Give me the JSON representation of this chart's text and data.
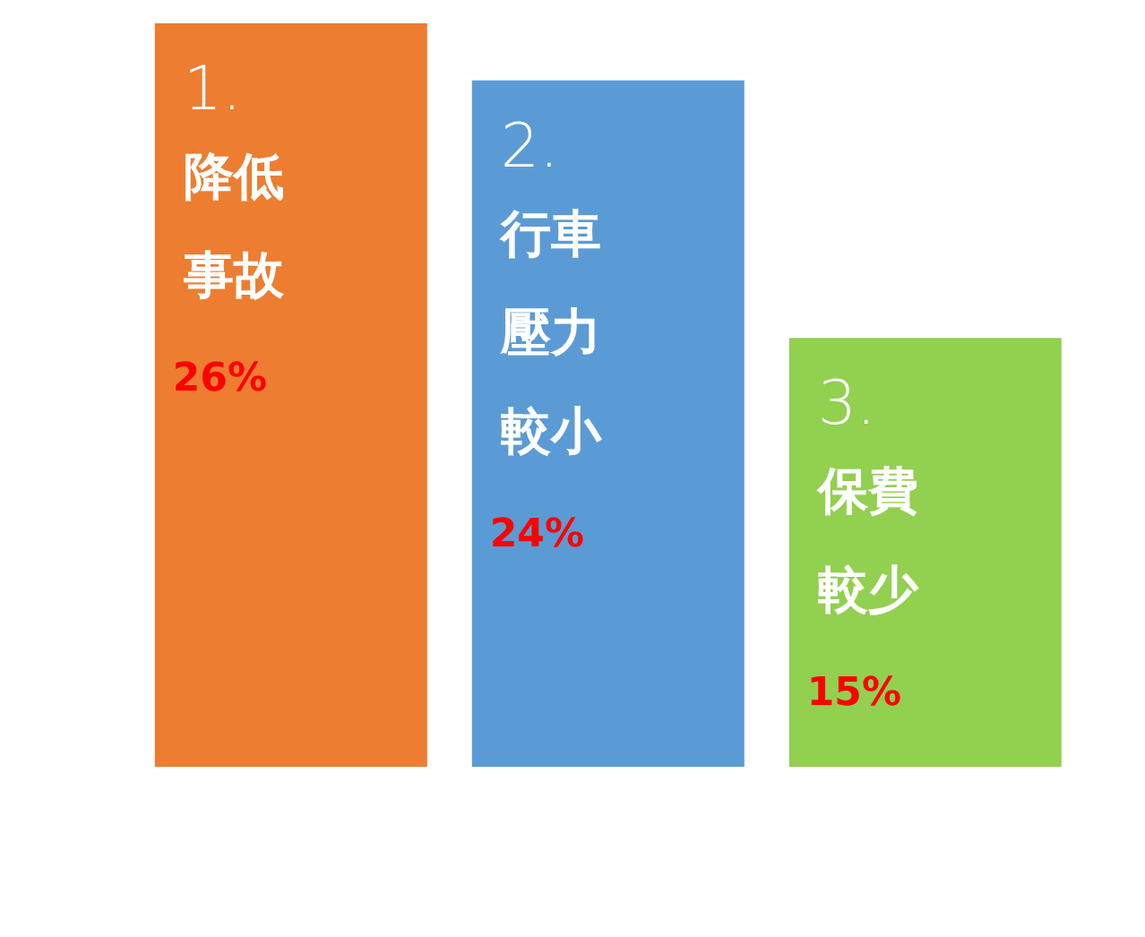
{
  "chart_data": {
    "type": "bar",
    "categories": [
      "1. 降低事故",
      "2. 行車壓力較小",
      "3. 保費較少"
    ],
    "values": [
      26,
      24,
      15
    ],
    "colors": [
      "#ed7d31",
      "#5b9bd5",
      "#92d050"
    ],
    "value_labels": [
      "26%",
      "24%",
      "15%"
    ],
    "tick_labels": false,
    "grid": false,
    "legend": false
  }
}
